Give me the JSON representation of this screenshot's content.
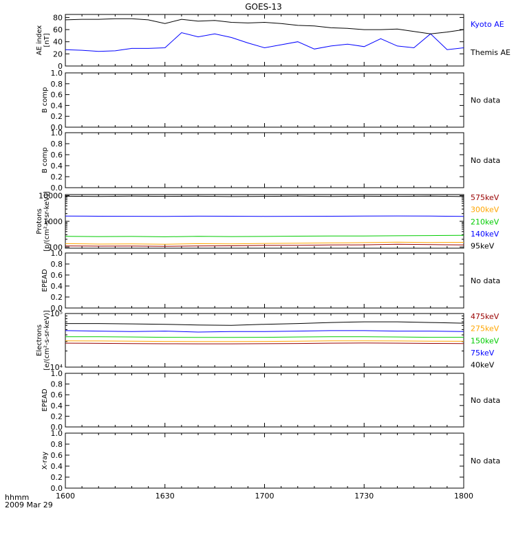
{
  "title": "GOES-13",
  "time_axis": {
    "label_line1": "hhmm",
    "label_line2": "2009 Mar 29",
    "ticks": [
      "1600",
      "1630",
      "1700",
      "1730",
      "1800"
    ]
  },
  "colors": {
    "black": "#000000",
    "blue": "#0000ff",
    "green": "#00cc00",
    "orange": "#ffa500",
    "darkred": "#990000"
  },
  "chart_data": [
    {
      "id": "ae",
      "type": "line",
      "ylabel_lines": [
        "AE index",
        "[nT]"
      ],
      "ylim": [
        0,
        85
      ],
      "yticks": [
        "0",
        "20",
        "40",
        "60",
        "80"
      ],
      "ytick_values": [
        0,
        20,
        40,
        60,
        80
      ],
      "x": [
        "1600",
        "1605",
        "1610",
        "1615",
        "1620",
        "1625",
        "1630",
        "1635",
        "1640",
        "1645",
        "1650",
        "1655",
        "1700",
        "1705",
        "1710",
        "1715",
        "1720",
        "1725",
        "1730",
        "1735",
        "1740",
        "1745",
        "1750",
        "1755",
        "1800"
      ],
      "series": [
        {
          "name": "Kyoto AE",
          "color": "#0000ff",
          "values": [
            27,
            26,
            24,
            25,
            29,
            29,
            30,
            55,
            48,
            53,
            47,
            38,
            30,
            35,
            40,
            28,
            33,
            36,
            32,
            45,
            33,
            30,
            53,
            27,
            30
          ]
        },
        {
          "name": "Themis AE",
          "color": "#000000",
          "values": [
            76,
            77,
            77,
            78,
            78,
            76,
            70,
            77,
            74,
            75,
            72,
            71,
            72,
            70,
            67,
            66,
            63,
            62,
            60,
            60,
            61,
            57,
            53,
            56,
            60
          ]
        }
      ],
      "legend": [
        "Kyoto AE",
        "Themis AE"
      ],
      "legend_colors": [
        "#0000ff",
        "#000000"
      ]
    },
    {
      "id": "bcomp1",
      "type": "line",
      "ylabel_lines": [
        "B comp"
      ],
      "ylim": [
        0,
        1
      ],
      "yticks": [
        "0.0",
        "0.2",
        "0.4",
        "0.6",
        "0.8",
        "1.0"
      ],
      "ytick_values": [
        0,
        0.2,
        0.4,
        0.6,
        0.8,
        1.0
      ],
      "note": "No data"
    },
    {
      "id": "bcomp2",
      "type": "line",
      "ylabel_lines": [
        "B comp"
      ],
      "ylim": [
        0,
        1
      ],
      "yticks": [
        "0.0",
        "0.2",
        "0.4",
        "0.6",
        "0.8",
        "1.0"
      ],
      "ytick_values": [
        0,
        0.2,
        0.4,
        0.6,
        0.8,
        1.0
      ],
      "note": "No data"
    },
    {
      "id": "protons",
      "type": "line",
      "log_scale": true,
      "ylabel_lines": [
        "Protons",
        "[p/(cm²-s-sr-keV)]"
      ],
      "ylim": [
        90,
        11000
      ],
      "yticks": [
        "100",
        "1000",
        "10000"
      ],
      "ytick_values": [
        100,
        1000,
        10000
      ],
      "x": [
        "1600",
        "1610",
        "1620",
        "1630",
        "1640",
        "1650",
        "1700",
        "1710",
        "1720",
        "1730",
        "1740",
        "1750",
        "1800"
      ],
      "series": [
        {
          "name": "95keV",
          "color": "#000000",
          "values": [
            9500,
            9300,
            9600,
            9400,
            9500,
            9200,
            9400,
            9600,
            9300,
            9500,
            9400,
            9600,
            9200
          ]
        },
        {
          "name": "140keV",
          "color": "#0000ff",
          "values": [
            1600,
            1580,
            1570,
            1560,
            1590,
            1580,
            1560,
            1570,
            1580,
            1600,
            1620,
            1610,
            1550
          ]
        },
        {
          "name": "210keV",
          "color": "#00cc00",
          "values": [
            260,
            255,
            258,
            250,
            262,
            255,
            258,
            265,
            270,
            268,
            275,
            280,
            285
          ]
        },
        {
          "name": "300keV",
          "color": "#ffa500",
          "values": [
            135,
            130,
            133,
            128,
            135,
            132,
            138,
            140,
            145,
            148,
            155,
            150,
            152
          ]
        },
        {
          "name": "575keV",
          "color": "#990000",
          "values": [
            110,
            108,
            109,
            106,
            110,
            112,
            115,
            116,
            120,
            122,
            128,
            125,
            120
          ]
        }
      ],
      "legend": [
        "575keV",
        "300keV",
        "210keV",
        "140keV",
        "95keV"
      ],
      "legend_colors": [
        "#990000",
        "#ffa500",
        "#00cc00",
        "#0000ff",
        "#000000"
      ]
    },
    {
      "id": "epead1",
      "type": "line",
      "ylabel_lines": [
        "EPEAD"
      ],
      "ylim": [
        0,
        1
      ],
      "yticks": [
        "0.0",
        "0.2",
        "0.4",
        "0.6",
        "0.8",
        "1.0"
      ],
      "ytick_values": [
        0,
        0.2,
        0.4,
        0.6,
        0.8,
        1.0
      ],
      "note": "No data"
    },
    {
      "id": "electrons",
      "type": "line",
      "log_scale": true,
      "ylabel_lines": [
        "Electrons",
        "[e/(cm²-s-sr-keV)]"
      ],
      "ylim": [
        10000,
        100000
      ],
      "yticks": [
        "10⁴",
        "10⁵"
      ],
      "ytick_values": [
        10000,
        100000
      ],
      "x": [
        "1600",
        "1610",
        "1620",
        "1630",
        "1640",
        "1650",
        "1700",
        "1710",
        "1720",
        "1730",
        "1740",
        "1750",
        "1800"
      ],
      "series": [
        {
          "name": "40keV",
          "color": "#000000",
          "values": [
            65000,
            65000,
            64000,
            63000,
            61000,
            60000,
            63000,
            65000,
            68000,
            70000,
            70000,
            68000,
            66000
          ]
        },
        {
          "name": "75keV",
          "color": "#0000ff",
          "values": [
            48000,
            47000,
            46000,
            47000,
            45000,
            46000,
            46000,
            47000,
            48000,
            48000,
            47000,
            47000,
            46000
          ]
        },
        {
          "name": "150keV",
          "color": "#00cc00",
          "values": [
            37000,
            37000,
            36500,
            36000,
            35800,
            35800,
            36000,
            36500,
            37000,
            37000,
            36500,
            36000,
            36000
          ]
        },
        {
          "name": "275keV",
          "color": "#ffa500",
          "values": [
            31000,
            30800,
            30500,
            30200,
            30000,
            30000,
            30200,
            30500,
            31000,
            31000,
            30800,
            30500,
            30300
          ]
        },
        {
          "name": "475keV",
          "color": "#990000",
          "values": [
            28000,
            27800,
            27500,
            27300,
            27200,
            27200,
            27400,
            27600,
            28000,
            28200,
            28000,
            27700,
            27500
          ]
        }
      ],
      "legend": [
        "475keV",
        "275keV",
        "150keV",
        "75keV",
        "40keV"
      ],
      "legend_colors": [
        "#990000",
        "#ffa500",
        "#00cc00",
        "#0000ff",
        "#000000"
      ]
    },
    {
      "id": "epead2",
      "type": "line",
      "ylabel_lines": [
        "EPEAD"
      ],
      "ylim": [
        0,
        1
      ],
      "yticks": [
        "0.0",
        "0.2",
        "0.4",
        "0.6",
        "0.8",
        "1.0"
      ],
      "ytick_values": [
        0,
        0.2,
        0.4,
        0.6,
        0.8,
        1.0
      ],
      "note": "No data"
    },
    {
      "id": "xray",
      "type": "line",
      "ylabel_lines": [
        "X-ray"
      ],
      "ylim": [
        0,
        1
      ],
      "yticks": [
        "0.0",
        "0.2",
        "0.4",
        "0.6",
        "0.8",
        "1.0"
      ],
      "ytick_values": [
        0,
        0.2,
        0.4,
        0.6,
        0.8,
        1.0
      ],
      "note": "No data"
    }
  ]
}
